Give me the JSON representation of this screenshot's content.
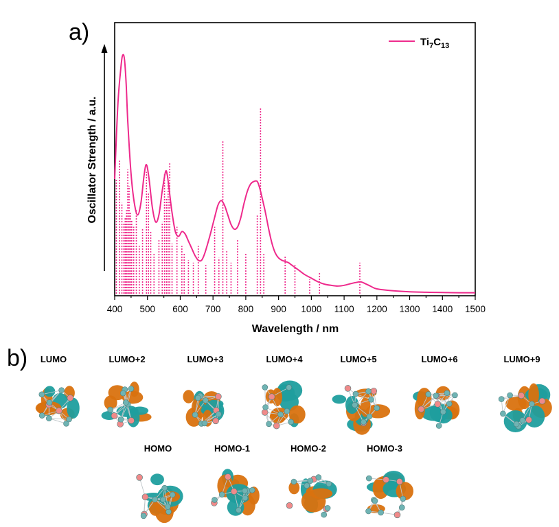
{
  "figure": {
    "panel_a_label": "a)",
    "panel_b_label": "b)"
  },
  "colors": {
    "curve": "#ee2a8c",
    "lobe_orange": "#d9720f",
    "lobe_teal": "#1f9e9e",
    "atom_ti": "#f08a8a",
    "atom_c": "#6fb3b3"
  },
  "chart_data": {
    "type": "line",
    "title": "",
    "xlabel": "Wavelength / nm",
    "ylabel": "Oscillator Strength / a.u.",
    "xlim": [
      400,
      1500
    ],
    "ylim": [
      0,
      1
    ],
    "x_ticks": [
      400,
      500,
      600,
      700,
      800,
      900,
      1000,
      1100,
      1200,
      1300,
      1400,
      1500
    ],
    "y_ticks_shown": false,
    "grid": false,
    "legend_position": "top-right",
    "series": [
      {
        "name": "Ti7C13",
        "legend_parts": [
          "Ti",
          "7",
          "C",
          "13"
        ],
        "kind": "line",
        "x": [
          400,
          410,
          420,
          425,
          430,
          435,
          440,
          450,
          460,
          470,
          480,
          490,
          497,
          505,
          515,
          525,
          535,
          545,
          555,
          560,
          565,
          575,
          585,
          595,
          605,
          615,
          625,
          635,
          645,
          655,
          665,
          675,
          690,
          705,
          715,
          725,
          735,
          745,
          755,
          765,
          775,
          785,
          795,
          805,
          815,
          825,
          835,
          843,
          850,
          860,
          870,
          880,
          890,
          900,
          910,
          920,
          930,
          940,
          950,
          960,
          980,
          1000,
          1020,
          1040,
          1060,
          1080,
          1100,
          1120,
          1140,
          1150,
          1160,
          1180,
          1200,
          1250,
          1300,
          1350,
          1400,
          1450,
          1500
        ],
        "values": [
          0.48,
          0.8,
          0.96,
          1.0,
          0.98,
          0.88,
          0.72,
          0.5,
          0.38,
          0.33,
          0.38,
          0.5,
          0.54,
          0.48,
          0.36,
          0.3,
          0.33,
          0.43,
          0.51,
          0.5,
          0.45,
          0.34,
          0.26,
          0.24,
          0.26,
          0.25,
          0.22,
          0.19,
          0.16,
          0.14,
          0.14,
          0.17,
          0.24,
          0.32,
          0.37,
          0.39,
          0.37,
          0.33,
          0.29,
          0.27,
          0.28,
          0.32,
          0.38,
          0.43,
          0.46,
          0.47,
          0.47,
          0.44,
          0.4,
          0.34,
          0.27,
          0.21,
          0.17,
          0.15,
          0.14,
          0.135,
          0.13,
          0.12,
          0.11,
          0.1,
          0.08,
          0.065,
          0.05,
          0.04,
          0.035,
          0.032,
          0.035,
          0.042,
          0.048,
          0.05,
          0.045,
          0.032,
          0.02,
          0.012,
          0.008,
          0.006,
          0.005,
          0.004,
          0.004
        ]
      },
      {
        "name": "transitions",
        "kind": "sticks",
        "x": [
          405,
          415,
          422,
          428,
          432,
          436,
          440,
          444,
          448,
          452,
          458,
          466,
          475,
          485,
          497,
          503,
          510,
          520,
          535,
          545,
          552,
          558,
          563,
          568,
          575,
          590,
          605,
          612,
          625,
          640,
          655,
          678,
          705,
          718,
          730,
          742,
          755,
          775,
          800,
          835,
          845,
          855,
          920,
          950,
          995,
          1025,
          1148
        ],
        "values": [
          0.48,
          0.56,
          0.38,
          0.3,
          0.32,
          0.35,
          0.52,
          0.45,
          0.34,
          0.31,
          0.28,
          0.35,
          0.2,
          0.27,
          0.51,
          0.42,
          0.26,
          0.17,
          0.23,
          0.3,
          0.5,
          0.4,
          0.47,
          0.55,
          0.21,
          0.28,
          0.2,
          0.17,
          0.14,
          0.13,
          0.2,
          0.12,
          0.28,
          0.15,
          0.64,
          0.18,
          0.13,
          0.23,
          0.17,
          0.33,
          0.78,
          0.17,
          0.16,
          0.12,
          0.06,
          0.09,
          0.13
        ]
      }
    ]
  },
  "orbitals": {
    "row1": [
      {
        "label": "LUMO"
      },
      {
        "label": "LUMO+2"
      },
      {
        "label": "LUMO+3"
      },
      {
        "label": "LUMO+4"
      },
      {
        "label": "LUMO+5"
      },
      {
        "label": "LUMO+6"
      },
      {
        "label": "LUMO+9"
      }
    ],
    "row2": [
      {
        "label": "HOMO"
      },
      {
        "label": "HOMO-1"
      },
      {
        "label": "HOMO-2"
      },
      {
        "label": "HOMO-3"
      }
    ]
  }
}
